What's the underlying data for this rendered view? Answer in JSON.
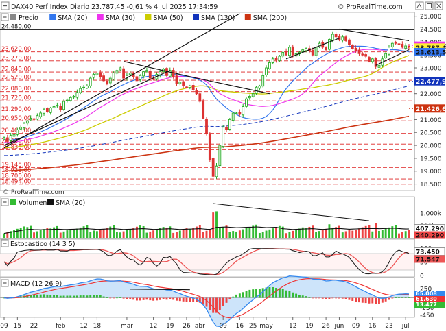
{
  "header": {
    "title": "DAX40 Perf Index Diario 23.787,45 -0,61 % 4 jul 2025 17:34:59",
    "brand_top": "© ProRealTime.com",
    "brand_bottom": "© ProRealTime.com"
  },
  "colors": {
    "price_up": "#22aa22",
    "price_down": "#dd3333",
    "sma20": "#3377ee",
    "sma30": "#ee33ee",
    "sma50": "#cccc00",
    "sma130": "#1133bb",
    "sma200": "#cc3311",
    "volume_up": "#33bb33",
    "volume_down": "#ee4444",
    "stoch_k": "#222222",
    "stoch_d": "#ee5555",
    "stoch_band": "#f0c0c0",
    "macd_line": "#3388ee",
    "macd_signal": "#ee3333",
    "macd_area": "#b8d8f8",
    "red_level": "#dd2222",
    "trendline": "#111111"
  },
  "main_panel": {
    "legend": [
      {
        "label": "Precio",
        "color": "#888888",
        "icon": "candle-icon"
      },
      {
        "label": "SMA (20)",
        "color": "#3377ee"
      },
      {
        "label": "SMA (30)",
        "color": "#ee33ee"
      },
      {
        "label": "SMA (50)",
        "color": "#cccc00"
      },
      {
        "label": "SMA (130)",
        "color": "#1133bb"
      },
      {
        "label": "SMA (200)",
        "color": "#cc3311"
      }
    ],
    "y_ticks": [
      "25.000",
      "24.500",
      "24.000",
      "23.500",
      "23.000",
      "22.500",
      "22.000",
      "21.500",
      "21.000",
      "20.500",
      "20.000",
      "19.500",
      "19.000",
      "18.500"
    ],
    "levels": [
      {
        "label": "24.480,00",
        "value": 24480,
        "style": "black"
      },
      {
        "label": "23.620,00",
        "value": 23620,
        "style": "red"
      },
      {
        "label": "23.270,00",
        "value": 23270,
        "style": "red"
      },
      {
        "label": "22.840,00",
        "value": 22840,
        "style": "red"
      },
      {
        "label": "22.520,00",
        "value": 22520,
        "style": "red"
      },
      {
        "label": "22.080,00",
        "value": 22080,
        "style": "red"
      },
      {
        "label": "21.720,00",
        "value": 21720,
        "style": "red"
      },
      {
        "label": "21.290,00",
        "value": 21290,
        "style": "red"
      },
      {
        "label": "20.950,00",
        "value": 20950,
        "style": "red"
      },
      {
        "label": "20.460,00",
        "value": 20460,
        "style": "red"
      },
      {
        "label": "20.050,00",
        "value": 20050,
        "style": "red"
      },
      {
        "label": "19.835,00",
        "value": 19835,
        "style": "red"
      },
      {
        "label": "19.145,00",
        "value": 19145,
        "style": "red"
      },
      {
        "label": "18.925,00",
        "value": 18925,
        "style": "red"
      },
      {
        "label": "18.700,00",
        "value": 18700,
        "style": "red"
      },
      {
        "label": "18.494,00",
        "value": 18494,
        "style": "red"
      }
    ],
    "right_tags": [
      {
        "label": "23.858,86",
        "value": 23858.86,
        "color": "#ee33ee"
      },
      {
        "label": "23.787,45",
        "value": 23787.45,
        "color": "#ffee33"
      },
      {
        "label": "23.613,54",
        "value": 23613.54,
        "color": "#3377ee"
      },
      {
        "label": "22.477,96",
        "value": 22477.96,
        "color": "#1133bb"
      },
      {
        "label": "21.426,65",
        "value": 21426.65,
        "color": "#cc3311"
      }
    ]
  },
  "x_axis": {
    "labels": [
      {
        "label": "09",
        "idx": 0
      },
      {
        "label": "15",
        "idx": 4
      },
      {
        "label": "22",
        "idx": 9
      },
      {
        "label": "feb",
        "idx": 17
      },
      {
        "label": "12",
        "idx": 24
      },
      {
        "label": "18",
        "idx": 28
      },
      {
        "label": "mar",
        "idx": 37
      },
      {
        "label": "12",
        "idx": 45
      },
      {
        "label": "19",
        "idx": 50
      },
      {
        "label": "26",
        "idx": 55
      },
      {
        "label": "abr",
        "idx": 59
      },
      {
        "label": "09",
        "idx": 66
      },
      {
        "label": "16",
        "idx": 71
      },
      {
        "label": "25",
        "idx": 75
      },
      {
        "label": "may",
        "idx": 79
      },
      {
        "label": "12",
        "idx": 87
      },
      {
        "label": "19",
        "idx": 92
      },
      {
        "label": "26",
        "idx": 97
      },
      {
        "label": "jun",
        "idx": 101
      },
      {
        "label": "09",
        "idx": 106
      },
      {
        "label": "16",
        "idx": 111
      },
      {
        "label": "23",
        "idx": 116
      },
      {
        "label": "jul",
        "idx": 121
      }
    ]
  },
  "volume_panel": {
    "legend": [
      {
        "label": "Volumen",
        "color": "#33bb33"
      },
      {
        "label": "SMA (20)",
        "color": "#111111"
      }
    ],
    "y_ticks": [
      "1.000k",
      "500k"
    ],
    "tags": [
      {
        "label": "407.290",
        "color": "#ffffff"
      },
      {
        "label": "240.290",
        "color": "#ee4444"
      }
    ]
  },
  "stoch_panel": {
    "legend_label": "Estocástico (14 3 5)",
    "y_ticks": [
      "100",
      "50",
      "0"
    ],
    "tags": [
      {
        "label": "73.450",
        "color": "#ffffff"
      },
      {
        "label": "71.547",
        "color": "#ee5555"
      }
    ]
  },
  "macd_panel": {
    "legend_label": "MACD (12 26 9)",
    "y_ticks": [
      "250",
      "0",
      "-250",
      "-450"
    ],
    "tags": [
      {
        "label": "65.008",
        "color": "#3388ee"
      },
      {
        "label": "61.630",
        "color": "#ee3333"
      },
      {
        "label": "13.477",
        "color": "#33bb33"
      }
    ]
  },
  "chart_data": {
    "type": "candlestick",
    "title": "DAX40 Perf Index Diario",
    "last": 23787.45,
    "change_pct": -0.61,
    "ylim": [
      18250,
      25150
    ],
    "close": [
      20300,
      20150,
      20380,
      20420,
      20600,
      20700,
      20850,
      20950,
      21050,
      21000,
      21150,
      21250,
      21400,
      21300,
      21450,
      21500,
      21550,
      21380,
      21700,
      21750,
      21850,
      21900,
      22050,
      22200,
      22250,
      22300,
      22600,
      22750,
      22800,
      22650,
      22500,
      22400,
      22600,
      22800,
      22900,
      23000,
      22600,
      22700,
      22800,
      22650,
      22500,
      22700,
      22850,
      22900,
      22600,
      22550,
      22750,
      22850,
      22950,
      22700,
      22900,
      22650,
      22400,
      22450,
      22300,
      22250,
      22300,
      22150,
      22000,
      21700,
      21050,
      20450,
      19450,
      18800,
      19200,
      20000,
      20700,
      20600,
      21000,
      21250,
      21250,
      21200,
      21500,
      21800,
      21900,
      22000,
      22250,
      22300,
      22700,
      23000,
      23200,
      23350,
      23300,
      23450,
      23600,
      23500,
      23800,
      23500,
      23550,
      23600,
      23700,
      23750,
      23650,
      23500,
      23800,
      23950,
      23800,
      23700,
      24100,
      24300,
      24200,
      24100,
      24200,
      24050,
      23900,
      23750,
      23650,
      23550,
      23500,
      23450,
      23250,
      23350,
      23050,
      23100,
      23350,
      23550,
      23800,
      23950,
      23950,
      23900,
      23800,
      23850,
      23787
    ]
  }
}
